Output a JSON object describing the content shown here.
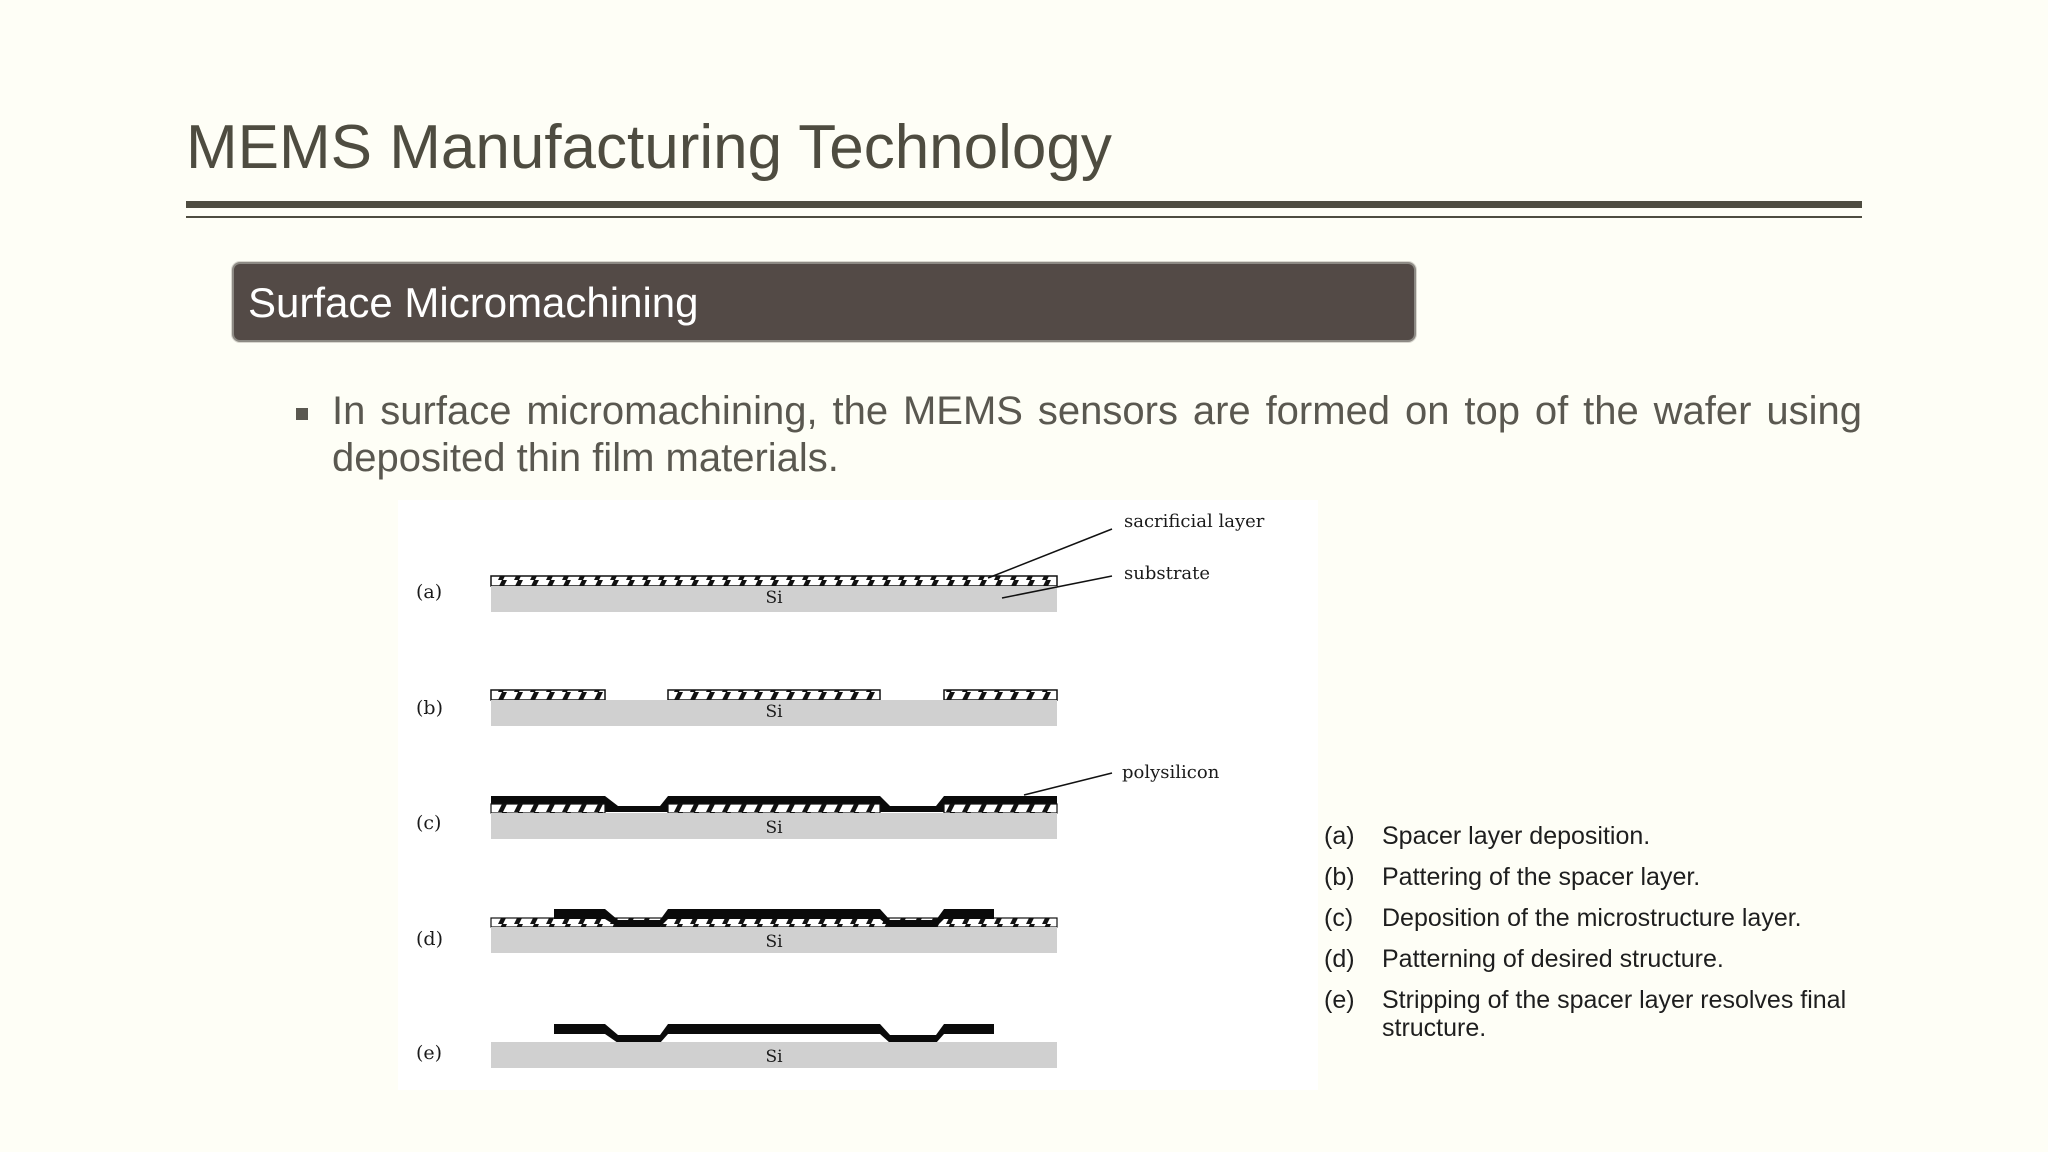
{
  "slide": {
    "title": "MEMS Manufacturing Technology",
    "section_heading": "Surface Micromachining",
    "bullet": "In surface micromachining, the MEMS sensors are formed on top of the wafer using deposited thin film materials."
  },
  "figure": {
    "step_labels": [
      "(a)",
      "(b)",
      "(c)",
      "(d)",
      "(e)"
    ],
    "substrate_label": "Si",
    "callouts": {
      "sacrificial": "sacrificial layer",
      "substrate": "substrate",
      "polysilicon": "polysilicon"
    }
  },
  "captions": [
    {
      "label": "(a)",
      "text": "Spacer layer deposition."
    },
    {
      "label": "(b)",
      "text": "Pattering of the spacer layer."
    },
    {
      "label": "(c)",
      "text": "Deposition of the microstructure layer."
    },
    {
      "label": "(d)",
      "text": "Patterning of desired structure."
    },
    {
      "label": "(e)",
      "text": "Stripping of the spacer layer resolves final structure."
    }
  ],
  "colors": {
    "background": "#fefef6",
    "title": "#4e4c40",
    "banner": "#534a46",
    "substrate": "#d0d0d0"
  }
}
